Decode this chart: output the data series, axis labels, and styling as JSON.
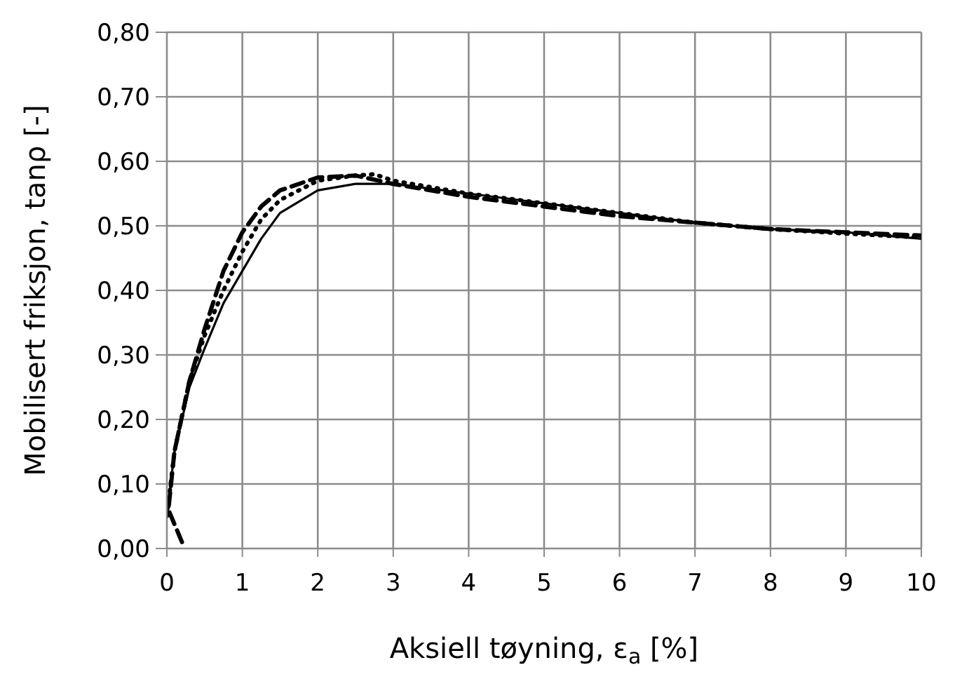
{
  "chart_data": {
    "type": "line",
    "xlabel": "Aksiell tøyning, ε$_{a}$ [%]",
    "ylabel": "Mobilisert friksjon, tanρ  [-]",
    "xlim": [
      0,
      10
    ],
    "xticks": [
      0,
      1,
      2,
      3,
      4,
      5,
      6,
      7,
      8,
      9,
      10
    ],
    "ylim": [
      0,
      0.8
    ],
    "yticks": [
      {
        "value": 0,
        "label": "0,00"
      },
      {
        "value": 0.1,
        "label": "0,10"
      },
      {
        "value": 0.2,
        "label": "0,20"
      },
      {
        "value": 0.3,
        "label": "0,30"
      },
      {
        "value": 0.4,
        "label": "0,40"
      },
      {
        "value": 0.5,
        "label": "0,50"
      },
      {
        "value": 0.6,
        "label": "0,60"
      },
      {
        "value": 0.7,
        "label": "0,70"
      },
      {
        "value": 0.8,
        "label": "0,80"
      }
    ],
    "grid": true,
    "marker": "none",
    "series": [
      {
        "color": "#000000",
        "line_style": "solid",
        "x": [
          0,
          0.1,
          0.3,
          0.5,
          0.75,
          1,
          1.25,
          1.5,
          2,
          2.5,
          3,
          4,
          5,
          6,
          7,
          8,
          9,
          10
        ],
        "values": [
          0.05,
          0.15,
          0.25,
          0.31,
          0.38,
          0.43,
          0.48,
          0.52,
          0.555,
          0.565,
          0.565,
          0.55,
          0.535,
          0.52,
          0.505,
          0.495,
          0.49,
          0.48
        ]
      },
      {
        "color": "#000000",
        "line_style": "dashed",
        "x": [
          0.2,
          0.02,
          0.1,
          0.3,
          0.5,
          0.75,
          1,
          1.25,
          1.5,
          2,
          2.5,
          3,
          4,
          5,
          6,
          7,
          8,
          9,
          10
        ],
        "values": [
          0.01,
          0.06,
          0.15,
          0.26,
          0.34,
          0.43,
          0.49,
          0.53,
          0.555,
          0.575,
          0.578,
          0.565,
          0.545,
          0.53,
          0.515,
          0.505,
          0.495,
          0.49,
          0.485
        ]
      },
      {
        "color": "#000000",
        "line_style": "dotted",
        "x": [
          0,
          0.1,
          0.3,
          0.5,
          0.75,
          1,
          1.25,
          1.5,
          2,
          2.5,
          2.75,
          3,
          4,
          5,
          6,
          7,
          8,
          9,
          10
        ],
        "values": [
          0.05,
          0.15,
          0.26,
          0.33,
          0.4,
          0.46,
          0.51,
          0.54,
          0.57,
          0.578,
          0.58,
          0.57,
          0.55,
          0.535,
          0.52,
          0.505,
          0.495,
          0.488,
          0.482
        ]
      }
    ]
  }
}
